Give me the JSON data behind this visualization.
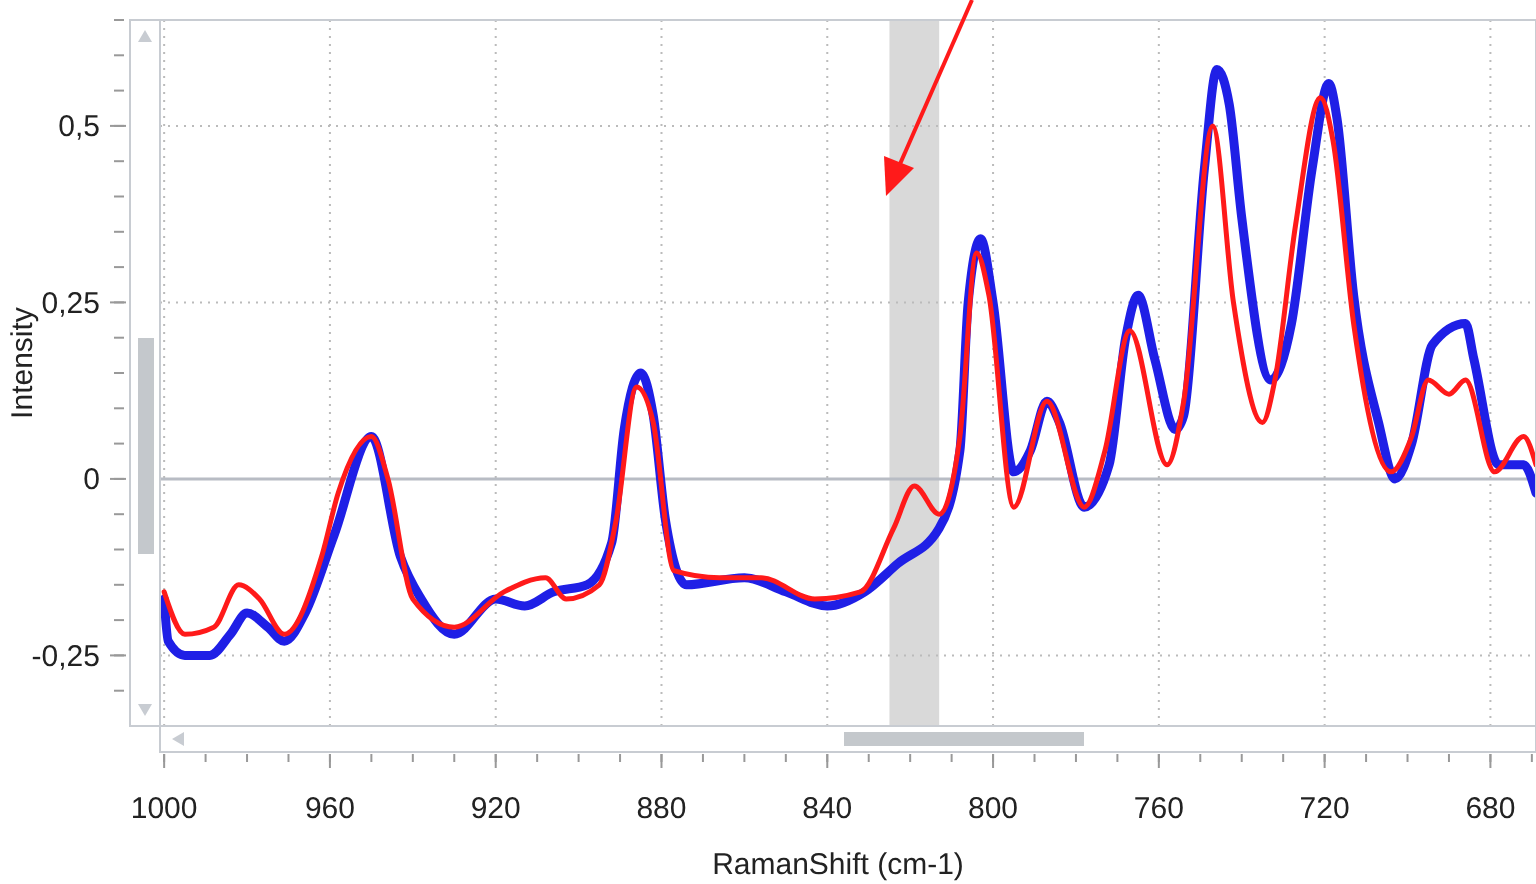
{
  "chart_data": {
    "type": "line",
    "xlabel": "RamanShift (cm-1)",
    "ylabel": "Intensity",
    "xlim": [
      1001,
      669
    ],
    "xticks": [
      1000,
      960,
      920,
      880,
      840,
      800,
      760,
      720,
      680
    ],
    "ylim": [
      -0.35,
      0.65
    ],
    "yticks": [
      {
        "value": 0.5,
        "label": "0,5"
      },
      {
        "value": 0.25,
        "label": "0,25"
      },
      {
        "value": 0,
        "label": "0"
      },
      {
        "value": -0.25,
        "label": "-0,25"
      }
    ],
    "grid": true,
    "line_style": "solid",
    "bands": [
      {
        "axis": "x",
        "from": 825,
        "to": 813,
        "color": "#d9d9d9"
      }
    ],
    "series": [
      {
        "color": "#1f1fe6",
        "x": [
          1000,
          999,
          995,
          989,
          984,
          980,
          975,
          971,
          966,
          959,
          950,
          943,
          938,
          930,
          920,
          913,
          906,
          898,
          892,
          889,
          885,
          882,
          879,
          874,
          860,
          850,
          840,
          831,
          823,
          813,
          808,
          806,
          803,
          800,
          795,
          791,
          787,
          784,
          778,
          772,
          768,
          765,
          761,
          756,
          754,
          749,
          746,
          743,
          740,
          733,
          728,
          723,
          719,
          717,
          713,
          707,
          703,
          699,
          694,
          686,
          684,
          678,
          672,
          669
        ],
        "values": [
          -0.17,
          -0.23,
          -0.25,
          -0.25,
          -0.22,
          -0.19,
          -0.21,
          -0.23,
          -0.19,
          -0.08,
          0.06,
          -0.11,
          -0.17,
          -0.22,
          -0.17,
          -0.18,
          -0.16,
          -0.15,
          -0.09,
          0.07,
          0.15,
          0.09,
          -0.06,
          -0.15,
          -0.14,
          -0.16,
          -0.18,
          -0.16,
          -0.12,
          -0.07,
          0.04,
          0.25,
          0.34,
          0.25,
          0.01,
          0.04,
          0.11,
          0.08,
          -0.04,
          0.02,
          0.2,
          0.26,
          0.17,
          0.07,
          0.09,
          0.44,
          0.58,
          0.53,
          0.37,
          0.14,
          0.22,
          0.44,
          0.56,
          0.51,
          0.26,
          0.08,
          0,
          0.05,
          0.19,
          0.22,
          0.17,
          0.02,
          0.02,
          -0.02
        ]
      },
      {
        "color": "#ff1a1a",
        "x": [
          1000,
          995,
          988,
          982,
          977,
          971,
          962,
          958,
          950,
          946,
          940,
          930,
          918,
          908,
          903,
          895,
          891,
          886,
          882,
          877,
          866,
          856,
          843,
          832,
          824,
          819,
          813,
          808,
          804,
          801,
          795,
          787,
          778,
          773,
          767,
          758,
          754,
          747,
          742,
          735,
          732,
          727,
          721,
          718,
          713,
          704,
          699,
          695,
          690,
          686,
          679,
          672,
          669
        ],
        "values": [
          -0.16,
          -0.22,
          -0.21,
          -0.15,
          -0.17,
          -0.22,
          -0.11,
          -0.02,
          0.06,
          0,
          -0.17,
          -0.21,
          -0.16,
          -0.14,
          -0.17,
          -0.15,
          -0.06,
          0.13,
          0.08,
          -0.13,
          -0.14,
          -0.14,
          -0.17,
          -0.16,
          -0.07,
          -0.01,
          -0.05,
          0.06,
          0.32,
          0.26,
          -0.04,
          0.11,
          -0.04,
          0.04,
          0.21,
          0.02,
          0.11,
          0.5,
          0.25,
          0.08,
          0.14,
          0.36,
          0.54,
          0.48,
          0.22,
          0.01,
          0.06,
          0.14,
          0.12,
          0.14,
          0.01,
          0.06,
          0.02
        ]
      }
    ]
  }
}
